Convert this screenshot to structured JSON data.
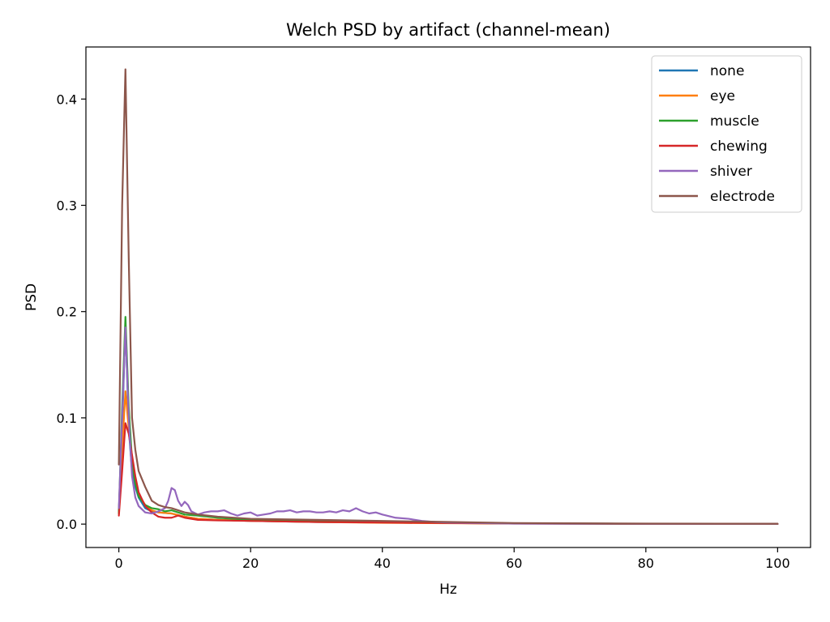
{
  "chart_data": {
    "type": "line",
    "title": "Welch PSD by artifact (channel-mean)",
    "xlabel": "Hz",
    "ylabel": "PSD",
    "xlim": [
      -5,
      105
    ],
    "ylim": [
      -0.022,
      0.449
    ],
    "xticks": [
      0,
      20,
      40,
      60,
      80,
      100
    ],
    "yticks": [
      0.0,
      0.1,
      0.2,
      0.3,
      0.4
    ],
    "xtick_labels": [
      "0",
      "20",
      "40",
      "60",
      "80",
      "100"
    ],
    "ytick_labels": [
      "0.0",
      "0.1",
      "0.2",
      "0.3",
      "0.4"
    ],
    "grid": false,
    "legend_position": "top-right",
    "series": [
      {
        "name": "none",
        "color": "#1f77b4",
        "x": [
          0,
          0.5,
          1,
          1.5,
          2,
          2.5,
          3,
          4,
          5,
          6,
          8,
          10,
          12,
          15,
          20,
          30,
          40,
          50,
          60,
          80,
          100
        ],
        "y": [
          0.012,
          0.09,
          0.19,
          0.09,
          0.05,
          0.035,
          0.025,
          0.015,
          0.012,
          0.011,
          0.01,
          0.007,
          0.005,
          0.004,
          0.003,
          0.002,
          0.0015,
          0.001,
          0.0006,
          0.0003,
          0.0002
        ]
      },
      {
        "name": "eye",
        "color": "#ff7f0e",
        "x": [
          0,
          0.5,
          1,
          1.5,
          2,
          2.5,
          3,
          4,
          5,
          6,
          8,
          10,
          12,
          15,
          20,
          30,
          40,
          50,
          60,
          80,
          100
        ],
        "y": [
          0.01,
          0.07,
          0.125,
          0.09,
          0.06,
          0.04,
          0.028,
          0.018,
          0.013,
          0.011,
          0.01,
          0.007,
          0.005,
          0.004,
          0.003,
          0.002,
          0.0012,
          0.0008,
          0.0005,
          0.0003,
          0.0002
        ]
      },
      {
        "name": "muscle",
        "color": "#2ca02c",
        "x": [
          0,
          0.5,
          1,
          1.5,
          2,
          2.5,
          3,
          4,
          5,
          6,
          7,
          8,
          9,
          10,
          12,
          15,
          20,
          30,
          40,
          50,
          60,
          80,
          100
        ],
        "y": [
          0.01,
          0.11,
          0.195,
          0.11,
          0.06,
          0.038,
          0.026,
          0.018,
          0.015,
          0.014,
          0.012,
          0.013,
          0.011,
          0.009,
          0.008,
          0.006,
          0.004,
          0.003,
          0.002,
          0.0012,
          0.0007,
          0.0003,
          0.0002
        ]
      },
      {
        "name": "chewing",
        "color": "#d62728",
        "x": [
          0,
          0.5,
          1,
          1.5,
          2,
          2.5,
          3,
          4,
          5,
          6,
          7,
          8,
          9,
          10,
          12,
          15,
          20,
          30,
          40,
          50,
          60,
          80,
          100
        ],
        "y": [
          0.008,
          0.05,
          0.095,
          0.085,
          0.065,
          0.045,
          0.03,
          0.017,
          0.011,
          0.007,
          0.006,
          0.006,
          0.008,
          0.006,
          0.004,
          0.0035,
          0.003,
          0.002,
          0.0015,
          0.001,
          0.0006,
          0.0003,
          0.0002
        ]
      },
      {
        "name": "shiver",
        "color": "#9467bd",
        "x": [
          0,
          0.5,
          1,
          1.5,
          2,
          2.5,
          3,
          4,
          5,
          6,
          7,
          7.5,
          8,
          8.5,
          9,
          9.5,
          10,
          10.5,
          11,
          12,
          13,
          14,
          15,
          16,
          17,
          18,
          19,
          20,
          21,
          22,
          23,
          24,
          25,
          26,
          27,
          28,
          29,
          30,
          31,
          32,
          33,
          34,
          35,
          36,
          37,
          38,
          39,
          40,
          42,
          44,
          46,
          48,
          50,
          55,
          60,
          70,
          80,
          100
        ],
        "y": [
          0.015,
          0.1,
          0.185,
          0.1,
          0.045,
          0.025,
          0.017,
          0.011,
          0.01,
          0.012,
          0.015,
          0.022,
          0.034,
          0.032,
          0.022,
          0.017,
          0.021,
          0.018,
          0.012,
          0.009,
          0.011,
          0.012,
          0.012,
          0.013,
          0.01,
          0.008,
          0.01,
          0.011,
          0.008,
          0.009,
          0.01,
          0.012,
          0.012,
          0.013,
          0.011,
          0.012,
          0.012,
          0.011,
          0.011,
          0.012,
          0.011,
          0.013,
          0.012,
          0.015,
          0.012,
          0.01,
          0.011,
          0.009,
          0.006,
          0.005,
          0.003,
          0.002,
          0.0015,
          0.001,
          0.0005,
          0.0004,
          0.0003,
          0.0002
        ]
      },
      {
        "name": "electrode",
        "color": "#8c564b",
        "x": [
          0,
          0.5,
          1,
          1.5,
          2,
          2.5,
          3,
          4,
          5,
          6,
          7,
          8,
          9,
          10,
          12,
          15,
          20,
          30,
          40,
          50,
          60,
          80,
          100
        ],
        "y": [
          0.056,
          0.3,
          0.428,
          0.25,
          0.1,
          0.07,
          0.05,
          0.035,
          0.022,
          0.018,
          0.016,
          0.015,
          0.013,
          0.011,
          0.009,
          0.007,
          0.005,
          0.004,
          0.003,
          0.002,
          0.001,
          0.0005,
          0.0003
        ]
      }
    ]
  }
}
